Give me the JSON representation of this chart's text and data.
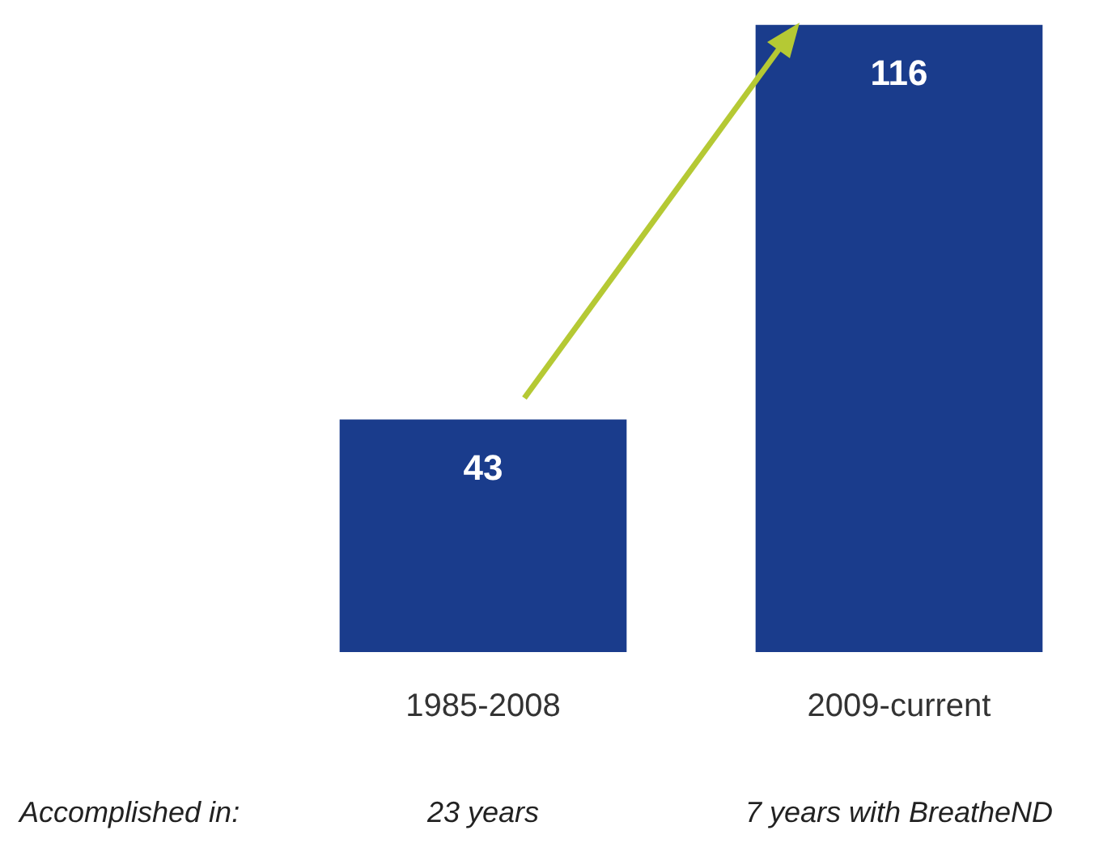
{
  "chart_data": {
    "type": "bar",
    "categories": [
      "1985-2008",
      "2009-current"
    ],
    "values": [
      43,
      116
    ],
    "color": "#1a3c8c",
    "data_labels": true,
    "grid": false,
    "annotations": [
      "Accomplished in:",
      "23 years",
      "7 years with BreatheND"
    ]
  }
}
